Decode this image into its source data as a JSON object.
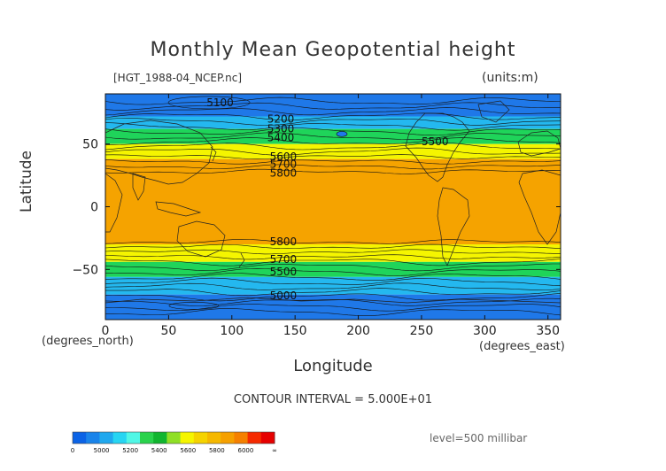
{
  "title": "Monthly Mean Geopotential height",
  "file_label": "[HGT_1988-04_NCEP.nc]",
  "units_label": "(units:m)",
  "xlabel": "Longitude",
  "ylabel": "Latitude",
  "x_units": "(degrees_east)",
  "y_units": "(degrees_north)",
  "contour_interval": "CONTOUR INTERVAL = 5.000E+01",
  "level_label": "level=500 millibar",
  "chart_data": {
    "type": "heatmap",
    "title": "Monthly Mean Geopotential height",
    "xlabel": "Longitude",
    "ylabel": "Latitude",
    "xlim": [
      0,
      360
    ],
    "ylim": [
      -90,
      90
    ],
    "x_ticks": [
      0,
      50,
      100,
      150,
      200,
      250,
      300,
      350
    ],
    "y_ticks": [
      -50,
      0,
      50
    ],
    "bands": [
      {
        "lat_from": 90,
        "lat_to": 72,
        "color": "#1f78e8",
        "range": "5000-5200"
      },
      {
        "lat_from": 72,
        "lat_to": 62,
        "color": "#24b8ef",
        "range": "5200-5400"
      },
      {
        "lat_from": 62,
        "lat_to": 50,
        "color": "#1fd45a",
        "range": "5400-5600"
      },
      {
        "lat_from": 50,
        "lat_to": 38,
        "color": "#f5f500",
        "range": "5600-5800"
      },
      {
        "lat_from": 38,
        "lat_to": -30,
        "color": "#f5a300",
        "range": "5800-6000"
      },
      {
        "lat_from": -30,
        "lat_to": -44,
        "color": "#f5f500",
        "range": "5600-5800"
      },
      {
        "lat_from": -44,
        "lat_to": -56,
        "color": "#1fd45a",
        "range": "5400-5600"
      },
      {
        "lat_from": -56,
        "lat_to": -70,
        "color": "#24b8ef",
        "range": "5200-5400"
      },
      {
        "lat_from": -70,
        "lat_to": -90,
        "color": "#1f78e8",
        "range": "5000-5200"
      }
    ],
    "contour_labels": [
      {
        "text": "5100",
        "lon": 80,
        "lat": 83
      },
      {
        "text": "5200",
        "lon": 128,
        "lat": 70
      },
      {
        "text": "5300",
        "lon": 128,
        "lat": 62
      },
      {
        "text": "5400",
        "lon": 128,
        "lat": 55
      },
      {
        "text": "5500",
        "lon": 250,
        "lat": 52
      },
      {
        "text": "5600",
        "lon": 130,
        "lat": 40
      },
      {
        "text": "5700",
        "lon": 130,
        "lat": 34
      },
      {
        "text": "5800",
        "lon": 130,
        "lat": 27
      },
      {
        "text": "5800",
        "lon": 130,
        "lat": -28
      },
      {
        "text": "5700",
        "lon": 130,
        "lat": -42
      },
      {
        "text": "5500",
        "lon": 130,
        "lat": -52
      },
      {
        "text": "5000",
        "lon": 130,
        "lat": -71
      }
    ],
    "colorbar": {
      "labels": [
        "0",
        "5000",
        "5200",
        "5400",
        "5600",
        "5800",
        "6000",
        "∞"
      ],
      "colors": [
        "#0b63e6",
        "#1a84ea",
        "#20a8ee",
        "#27d5f2",
        "#50f7e6",
        "#2ad24c",
        "#11b52f",
        "#8fdf25",
        "#f5f500",
        "#f5d300",
        "#f5b800",
        "#f5a000",
        "#f58000",
        "#f52a00",
        "#e60000"
      ]
    }
  }
}
